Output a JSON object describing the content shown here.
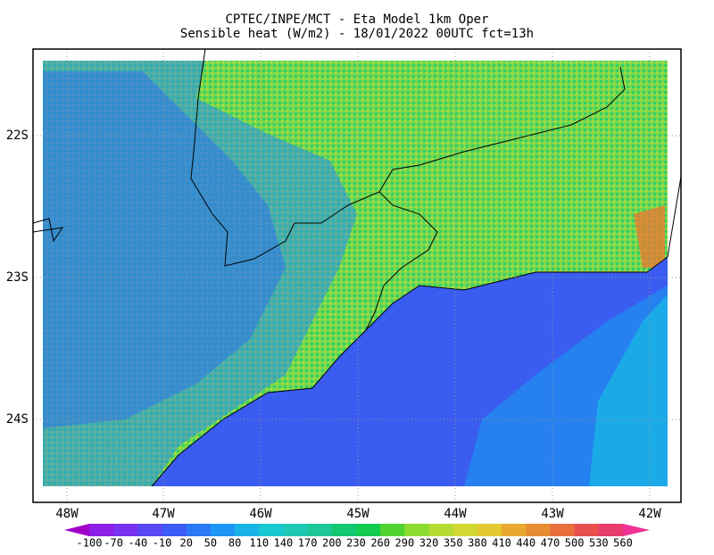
{
  "title": [
    "CPTEC/INPE/MCT -  Eta Model 1km Oper",
    "Sensible heat (W/m2) - 18/01/2022 00UTC fct=13h"
  ],
  "lat_labels": [
    "22S",
    "23S",
    "24S"
  ],
  "lon_labels": [
    "48W",
    "47W",
    "46W",
    "45W",
    "44W",
    "43W",
    "42W"
  ],
  "colorbar": {
    "levels": [
      -100,
      -70,
      -40,
      -10,
      20,
      50,
      80,
      110,
      140,
      170,
      200,
      230,
      260,
      290,
      320,
      350,
      380,
      410,
      440,
      470,
      500,
      530,
      560
    ],
    "colors": [
      "#a000c8",
      "#8c1ee6",
      "#7832f0",
      "#5a46f5",
      "#3c5af5",
      "#2a78f5",
      "#1e96f5",
      "#19b4e6",
      "#19c8d2",
      "#1ec8b4",
      "#1ec896",
      "#14c870",
      "#14cc50",
      "#50d432",
      "#8cdc32",
      "#b4dc32",
      "#d2d832",
      "#e6c832",
      "#e8a832",
      "#e88c32",
      "#e86e3c",
      "#e85050",
      "#e83c6e",
      "#f03296"
    ]
  }
}
